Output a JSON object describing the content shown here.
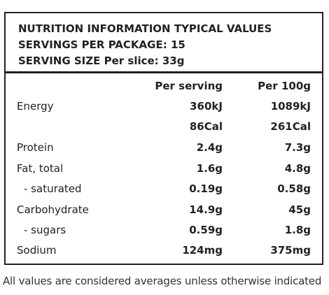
{
  "header": {
    "line1": "NUTRITION INFORMATION TYPICAL VALUES",
    "line2": "SERVINGS PER PACKAGE: 15",
    "line3": "SERVING SIZE Per slice: 33g"
  },
  "table": {
    "columns": {
      "per_serving": "Per serving",
      "per_100g": "Per 100g"
    },
    "rows": [
      {
        "label": "Energy",
        "per_serving": "360kJ",
        "per_100g": "1089kJ"
      },
      {
        "label": "",
        "per_serving": "86Cal",
        "per_100g": "261Cal"
      },
      {
        "label": "Protein",
        "per_serving": "2.4g",
        "per_100g": "7.3g"
      },
      {
        "label": "Fat, total",
        "per_serving": "1.6g",
        "per_100g": "4.8g"
      },
      {
        "label": "- saturated",
        "per_serving": "0.19g",
        "per_100g": "0.58g"
      },
      {
        "label": "Carbohydrate",
        "per_serving": "14.9g",
        "per_100g": "45g"
      },
      {
        "label": "- sugars",
        "per_serving": "0.59g",
        "per_100g": "1.8g"
      },
      {
        "label": "Sodium",
        "per_serving": "124mg",
        "per_100g": "375mg"
      }
    ]
  },
  "footnote": "All values are considered averages unless otherwise indicated"
}
